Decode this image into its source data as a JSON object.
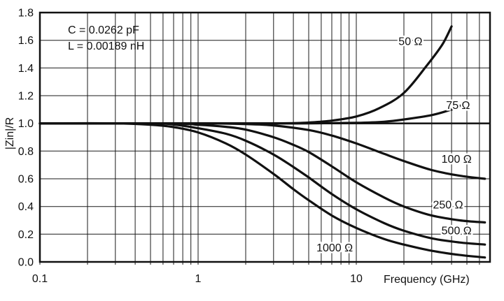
{
  "chart_data": {
    "type": "line",
    "title": "",
    "xlabel": "Frequency (GHz)",
    "ylabel": "|Zin|/R",
    "xscale": "log",
    "xlim": [
      0.1,
      70
    ],
    "ylim": [
      0,
      1.8
    ],
    "ytick_step": 0.2,
    "grid": true,
    "legend_position": "inline-labels",
    "line_color": "#111111",
    "grid_color": "#1a1a1a",
    "axis_color": "#111111",
    "text_color": "#111111",
    "xticks": [
      {
        "v": 0.1,
        "label": "0.1"
      },
      {
        "v": 1,
        "label": "1"
      },
      {
        "v": 10,
        "label": "10"
      }
    ],
    "x_gridlines": [
      0.1,
      0.2,
      0.3,
      0.4,
      0.5,
      0.6,
      0.7,
      0.8,
      0.9,
      1,
      2,
      3,
      4,
      5,
      6,
      7,
      8,
      9,
      10,
      20,
      30,
      40,
      50,
      60
    ],
    "annotation": [
      "C = 0.0262 pF",
      "L = 0.00189 nH"
    ],
    "series": [
      {
        "name": "50 Ω",
        "label_at": [
          22,
          1.59
        ],
        "points": [
          [
            0.1,
            1
          ],
          [
            1,
            1
          ],
          [
            2,
            1
          ],
          [
            3,
            1
          ],
          [
            4,
            1.002
          ],
          [
            5,
            1.006
          ],
          [
            7,
            1.02
          ],
          [
            10,
            1.05
          ],
          [
            14,
            1.11
          ],
          [
            20,
            1.22
          ],
          [
            28,
            1.42
          ],
          [
            35,
            1.57
          ],
          [
            40,
            1.7
          ]
        ]
      },
      {
        "name": "75 Ω",
        "label_at": [
          44,
          1.13
        ],
        "points": [
          [
            0.1,
            1
          ],
          [
            2,
            1
          ],
          [
            5,
            1
          ],
          [
            10,
            1.004
          ],
          [
            15,
            1.012
          ],
          [
            20,
            1.028
          ],
          [
            30,
            1.06
          ],
          [
            40,
            1.1
          ],
          [
            46,
            1.13
          ]
        ]
      },
      {
        "name": "100 Ω",
        "label_at": [
          43,
          0.74
        ],
        "points": [
          [
            0.1,
            1
          ],
          [
            1,
            1
          ],
          [
            2,
            0.995
          ],
          [
            3,
            0.985
          ],
          [
            5,
            0.952
          ],
          [
            7,
            0.912
          ],
          [
            10,
            0.855
          ],
          [
            15,
            0.78
          ],
          [
            20,
            0.728
          ],
          [
            30,
            0.663
          ],
          [
            45,
            0.622
          ],
          [
            65,
            0.6
          ]
        ]
      },
      {
        "name": "250 Ω",
        "label_at": [
          38,
          0.41
        ],
        "points": [
          [
            0.1,
            1
          ],
          [
            0.7,
            0.998
          ],
          [
            1,
            0.99
          ],
          [
            1.5,
            0.975
          ],
          [
            2,
            0.955
          ],
          [
            3,
            0.9
          ],
          [
            4,
            0.845
          ],
          [
            5,
            0.793
          ],
          [
            7,
            0.69
          ],
          [
            10,
            0.575
          ],
          [
            15,
            0.465
          ],
          [
            20,
            0.4
          ],
          [
            30,
            0.335
          ],
          [
            45,
            0.3
          ],
          [
            65,
            0.285
          ]
        ]
      },
      {
        "name": "500 Ω",
        "label_at": [
          43,
          0.225
        ],
        "points": [
          [
            0.1,
            1
          ],
          [
            0.5,
            1
          ],
          [
            0.7,
            0.992
          ],
          [
            1,
            0.965
          ],
          [
            1.5,
            0.925
          ],
          [
            2,
            0.875
          ],
          [
            3,
            0.775
          ],
          [
            4,
            0.685
          ],
          [
            5,
            0.61
          ],
          [
            7,
            0.49
          ],
          [
            10,
            0.38
          ],
          [
            15,
            0.28
          ],
          [
            20,
            0.225
          ],
          [
            30,
            0.17
          ],
          [
            45,
            0.14
          ],
          [
            65,
            0.125
          ]
        ]
      },
      {
        "name": "1000 Ω",
        "label_at": [
          7.3,
          0.1
        ],
        "points": [
          [
            0.1,
            1
          ],
          [
            0.3,
            1
          ],
          [
            0.5,
            0.99
          ],
          [
            0.7,
            0.973
          ],
          [
            1,
            0.935
          ],
          [
            1.5,
            0.855
          ],
          [
            2,
            0.775
          ],
          [
            3,
            0.635
          ],
          [
            4,
            0.525
          ],
          [
            5,
            0.445
          ],
          [
            7,
            0.335
          ],
          [
            10,
            0.245
          ],
          [
            15,
            0.165
          ],
          [
            20,
            0.125
          ],
          [
            30,
            0.08
          ],
          [
            45,
            0.05
          ],
          [
            65,
            0.032
          ]
        ]
      }
    ]
  }
}
